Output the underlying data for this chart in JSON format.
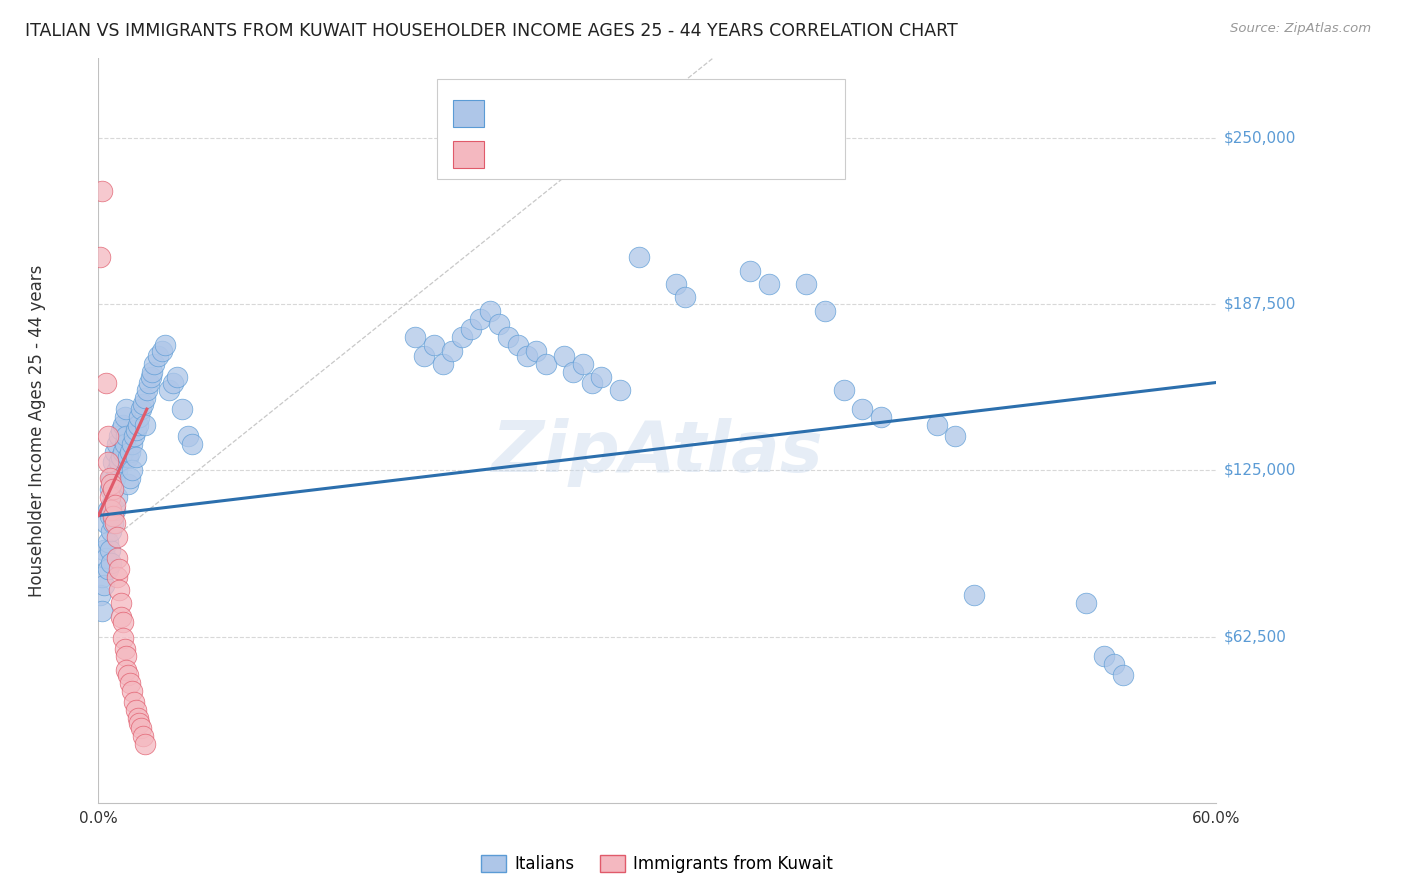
{
  "title": "ITALIAN VS IMMIGRANTS FROM KUWAIT HOUSEHOLDER INCOME AGES 25 - 44 YEARS CORRELATION CHART",
  "source_text": "Source: ZipAtlas.com",
  "watermark": "ZipAtlas",
  "ylabel": "Householder Income Ages 25 - 44 years",
  "xlim": [
    0.0,
    0.6
  ],
  "ylim": [
    0,
    280000
  ],
  "yticks": [
    62500,
    125000,
    187500,
    250000
  ],
  "ytick_labels": [
    "$62,500",
    "$125,000",
    "$187,500",
    "$250,000"
  ],
  "xticks": [
    0.0,
    0.1,
    0.2,
    0.3,
    0.4,
    0.5,
    0.6
  ],
  "blue_color": "#aec6e8",
  "blue_edge_color": "#5b9bd5",
  "pink_color": "#f4b8c0",
  "pink_edge_color": "#e05a6a",
  "blue_line_color": "#2c6fad",
  "pink_line_color": "#e05a6a",
  "ref_line_color": "#c8c8c8",
  "title_color": "#222222",
  "right_label_color": "#5b9bd5",
  "grid_color": "#d8d8d8",
  "background_color": "#ffffff",
  "blue_scatter": [
    [
      0.001,
      78000
    ],
    [
      0.002,
      85000
    ],
    [
      0.002,
      72000
    ],
    [
      0.003,
      95000
    ],
    [
      0.003,
      82000
    ],
    [
      0.004,
      105000
    ],
    [
      0.004,
      92000
    ],
    [
      0.005,
      110000
    ],
    [
      0.005,
      98000
    ],
    [
      0.005,
      88000
    ],
    [
      0.006,
      118000
    ],
    [
      0.006,
      108000
    ],
    [
      0.006,
      95000
    ],
    [
      0.007,
      122000
    ],
    [
      0.007,
      112000
    ],
    [
      0.007,
      102000
    ],
    [
      0.007,
      90000
    ],
    [
      0.008,
      128000
    ],
    [
      0.008,
      118000
    ],
    [
      0.008,
      105000
    ],
    [
      0.009,
      132000
    ],
    [
      0.009,
      122000
    ],
    [
      0.009,
      110000
    ],
    [
      0.01,
      135000
    ],
    [
      0.01,
      125000
    ],
    [
      0.01,
      115000
    ],
    [
      0.011,
      138000
    ],
    [
      0.011,
      128000
    ],
    [
      0.012,
      140000
    ],
    [
      0.012,
      130000
    ],
    [
      0.013,
      142000
    ],
    [
      0.013,
      132000
    ],
    [
      0.014,
      145000
    ],
    [
      0.014,
      135000
    ],
    [
      0.015,
      148000
    ],
    [
      0.015,
      138000
    ],
    [
      0.016,
      130000
    ],
    [
      0.016,
      120000
    ],
    [
      0.017,
      132000
    ],
    [
      0.017,
      122000
    ],
    [
      0.018,
      135000
    ],
    [
      0.018,
      125000
    ],
    [
      0.019,
      138000
    ],
    [
      0.02,
      140000
    ],
    [
      0.02,
      130000
    ],
    [
      0.021,
      142000
    ],
    [
      0.022,
      145000
    ],
    [
      0.023,
      148000
    ],
    [
      0.024,
      150000
    ],
    [
      0.025,
      152000
    ],
    [
      0.025,
      142000
    ],
    [
      0.026,
      155000
    ],
    [
      0.027,
      158000
    ],
    [
      0.028,
      160000
    ],
    [
      0.029,
      162000
    ],
    [
      0.03,
      165000
    ],
    [
      0.032,
      168000
    ],
    [
      0.034,
      170000
    ],
    [
      0.036,
      172000
    ],
    [
      0.038,
      155000
    ],
    [
      0.04,
      158000
    ],
    [
      0.042,
      160000
    ],
    [
      0.045,
      148000
    ],
    [
      0.048,
      138000
    ],
    [
      0.05,
      135000
    ],
    [
      0.17,
      175000
    ],
    [
      0.175,
      168000
    ],
    [
      0.18,
      172000
    ],
    [
      0.185,
      165000
    ],
    [
      0.19,
      170000
    ],
    [
      0.195,
      175000
    ],
    [
      0.2,
      178000
    ],
    [
      0.205,
      182000
    ],
    [
      0.21,
      185000
    ],
    [
      0.215,
      180000
    ],
    [
      0.22,
      175000
    ],
    [
      0.225,
      172000
    ],
    [
      0.23,
      168000
    ],
    [
      0.235,
      170000
    ],
    [
      0.24,
      165000
    ],
    [
      0.25,
      168000
    ],
    [
      0.255,
      162000
    ],
    [
      0.26,
      165000
    ],
    [
      0.265,
      158000
    ],
    [
      0.27,
      160000
    ],
    [
      0.28,
      155000
    ],
    [
      0.29,
      205000
    ],
    [
      0.31,
      195000
    ],
    [
      0.315,
      190000
    ],
    [
      0.35,
      200000
    ],
    [
      0.36,
      195000
    ],
    [
      0.38,
      195000
    ],
    [
      0.39,
      185000
    ],
    [
      0.4,
      155000
    ],
    [
      0.41,
      148000
    ],
    [
      0.42,
      145000
    ],
    [
      0.45,
      142000
    ],
    [
      0.46,
      138000
    ],
    [
      0.47,
      78000
    ],
    [
      0.53,
      75000
    ],
    [
      0.54,
      55000
    ],
    [
      0.545,
      52000
    ],
    [
      0.55,
      48000
    ]
  ],
  "pink_scatter": [
    [
      0.001,
      205000
    ],
    [
      0.002,
      230000
    ],
    [
      0.004,
      158000
    ],
    [
      0.005,
      138000
    ],
    [
      0.005,
      128000
    ],
    [
      0.006,
      122000
    ],
    [
      0.006,
      115000
    ],
    [
      0.007,
      120000
    ],
    [
      0.007,
      110000
    ],
    [
      0.008,
      118000
    ],
    [
      0.008,
      108000
    ],
    [
      0.009,
      112000
    ],
    [
      0.009,
      105000
    ],
    [
      0.01,
      100000
    ],
    [
      0.01,
      92000
    ],
    [
      0.01,
      85000
    ],
    [
      0.011,
      88000
    ],
    [
      0.011,
      80000
    ],
    [
      0.012,
      75000
    ],
    [
      0.012,
      70000
    ],
    [
      0.013,
      68000
    ],
    [
      0.013,
      62000
    ],
    [
      0.014,
      58000
    ],
    [
      0.015,
      55000
    ],
    [
      0.015,
      50000
    ],
    [
      0.016,
      48000
    ],
    [
      0.017,
      45000
    ],
    [
      0.018,
      42000
    ],
    [
      0.019,
      38000
    ],
    [
      0.02,
      35000
    ],
    [
      0.021,
      32000
    ],
    [
      0.022,
      30000
    ],
    [
      0.023,
      28000
    ],
    [
      0.024,
      25000
    ],
    [
      0.025,
      22000
    ]
  ],
  "blue_line": {
    "x0": 0.0,
    "y0": 108000,
    "x1": 0.6,
    "y1": 158000
  },
  "pink_line": {
    "x0": 0.0,
    "y0": 108000,
    "x1": 0.026,
    "y1": 148000
  },
  "ref_line": {
    "x0": 0.0,
    "y0": 95000,
    "x1": 0.33,
    "y1": 280000
  }
}
